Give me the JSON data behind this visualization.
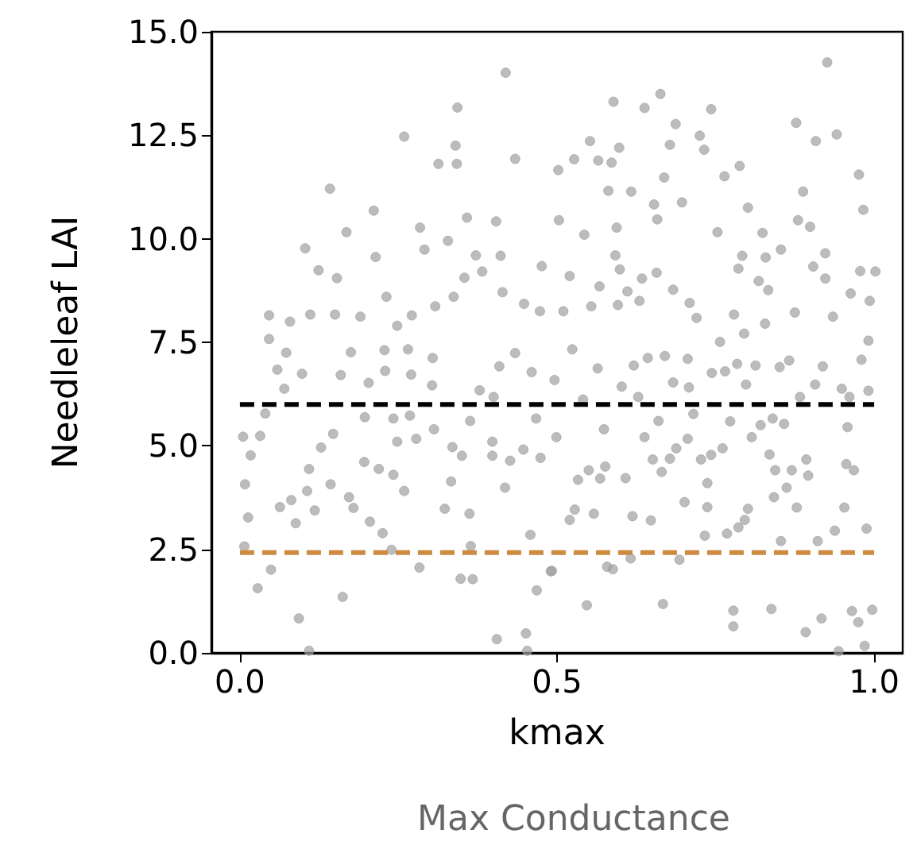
{
  "chart_data": {
    "type": "scatter",
    "xlabel": "kmax",
    "ylabel": "Needleleaf LAI",
    "annotations": [
      "Max Conductance"
    ],
    "grid": false,
    "xlim": [
      -0.045,
      1.045
    ],
    "xticks": [
      {
        "value": 0,
        "label": "0.0"
      },
      {
        "value": 0.5,
        "label": "0.5"
      },
      {
        "value": 1,
        "label": "1.0"
      }
    ],
    "ylim": [
      0,
      15
    ],
    "yticks": [
      {
        "value": 0,
        "label": "0.0"
      },
      {
        "value": 2.5,
        "label": "2.5"
      },
      {
        "value": 5,
        "label": "5.0"
      },
      {
        "value": 7.5,
        "label": "7.5"
      },
      {
        "value": 10,
        "label": "10.0"
      },
      {
        "value": 12.5,
        "label": "12.5"
      },
      {
        "value": 15,
        "label": "15.0"
      }
    ],
    "series": [
      {
        "marker": "circle",
        "color": "#a0a0a0",
        "x": [
          0.419,
          0.343,
          0.259,
          0.34,
          0.313,
          0.342,
          0.434,
          0.142,
          0.211,
          0.168,
          0.103,
          0.358,
          0.404,
          0.124,
          0.153,
          0.214,
          0.284,
          0.291,
          0.328,
          0.231,
          0.372,
          0.411,
          0.046,
          0.079,
          0.111,
          0.15,
          0.19,
          0.248,
          0.271,
          0.308,
          0.337,
          0.354,
          0.382,
          0.414,
          0.448,
          0.476,
          0.473,
          0.046,
          0.073,
          0.059,
          0.098,
          0.07,
          0.04,
          0.005,
          0.032,
          0.017,
          0.008,
          0.013,
          0.007,
          0.028,
          0.049,
          0.093,
          0.063,
          0.088,
          0.081,
          0.106,
          0.128,
          0.147,
          0.118,
          0.143,
          0.109,
          0.162,
          0.172,
          0.179,
          0.205,
          0.225,
          0.242,
          0.259,
          0.196,
          0.219,
          0.175,
          0.228,
          0.265,
          0.304,
          0.159,
          0.203,
          0.229,
          0.27,
          0.303,
          0.197,
          0.242,
          0.268,
          0.248,
          0.278,
          0.306,
          0.335,
          0.35,
          0.323,
          0.333,
          0.283,
          0.239,
          0.348,
          0.367,
          0.362,
          0.364,
          0.405,
          0.451,
          0.109,
          0.453,
          0.398,
          0.398,
          0.426,
          0.418,
          0.447,
          0.474,
          0.458,
          0.468,
          0.49,
          0.363,
          0.378,
          0.4,
          0.434,
          0.409,
          0.46,
          0.467,
          0.926,
          0.589,
          0.663,
          0.638,
          0.743,
          0.687,
          0.877,
          0.941,
          0.908,
          0.725,
          0.732,
          0.678,
          0.552,
          0.598,
          0.527,
          0.502,
          0.565,
          0.586,
          0.788,
          0.764,
          0.976,
          0.669,
          0.581,
          0.617,
          0.888,
          0.697,
          0.653,
          0.801,
          0.983,
          0.503,
          0.658,
          0.543,
          0.594,
          0.753,
          0.824,
          0.88,
          0.899,
          0.592,
          0.792,
          0.829,
          0.853,
          0.923,
          0.52,
          0.599,
          0.657,
          0.786,
          0.904,
          0.978,
          1.002,
          0.567,
          0.611,
          0.634,
          0.683,
          0.818,
          0.833,
          0.923,
          0.51,
          0.596,
          0.63,
          0.709,
          0.72,
          0.779,
          0.875,
          0.963,
          0.993,
          0.935,
          0.554,
          0.795,
          0.828,
          0.524,
          0.564,
          0.621,
          0.643,
          0.67,
          0.706,
          0.757,
          0.813,
          0.784,
          0.851,
          0.866,
          0.919,
          0.98,
          0.991,
          0.496,
          0.602,
          0.683,
          0.708,
          0.765,
          0.744,
          0.798,
          0.907,
          0.949,
          0.991,
          0.541,
          0.628,
          0.883,
          0.961,
          0.574,
          0.638,
          0.66,
          0.715,
          0.773,
          0.807,
          0.821,
          0.84,
          0.858,
          0.958,
          0.499,
          0.688,
          0.706,
          0.651,
          0.678,
          0.727,
          0.743,
          0.761,
          0.835,
          0.893,
          0.956,
          0.968,
          0.533,
          0.55,
          0.568,
          0.576,
          0.608,
          0.665,
          0.737,
          0.844,
          0.87,
          0.896,
          0.862,
          0.842,
          0.701,
          0.737,
          0.801,
          0.796,
          0.786,
          0.768,
          0.733,
          0.878,
          0.953,
          0.938,
          0.988,
          0.52,
          0.528,
          0.558,
          0.619,
          0.648,
          0.853,
          0.911,
          0.579,
          0.588,
          0.616,
          0.693,
          0.492,
          0.547,
          0.667,
          0.778,
          0.778,
          0.838,
          0.917,
          0.892,
          0.965,
          0.975,
          0.997,
          0.985,
          0.944
        ],
        "values": [
          14.01,
          13.17,
          12.47,
          12.25,
          11.81,
          11.81,
          11.93,
          11.21,
          10.68,
          10.16,
          9.77,
          10.51,
          10.42,
          9.24,
          9.05,
          9.56,
          10.27,
          9.74,
          9.95,
          8.6,
          9.6,
          9.59,
          8.15,
          8.0,
          8.17,
          8.17,
          8.12,
          7.9,
          8.15,
          8.37,
          8.6,
          9.06,
          9.21,
          8.71,
          8.43,
          9.34,
          8.25,
          7.58,
          7.25,
          6.84,
          6.74,
          6.38,
          5.78,
          5.22,
          5.24,
          4.77,
          4.07,
          3.27,
          2.57,
          1.56,
          2.01,
          0.83,
          3.52,
          3.13,
          3.69,
          3.91,
          4.96,
          5.29,
          3.44,
          4.07,
          4.44,
          1.35,
          3.76,
          3.5,
          3.17,
          2.89,
          4.3,
          3.91,
          4.61,
          4.44,
          7.26,
          7.31,
          7.33,
          7.12,
          6.71,
          6.52,
          6.81,
          6.72,
          6.46,
          5.69,
          5.66,
          5.73,
          5.1,
          5.17,
          5.4,
          4.97,
          4.76,
          3.48,
          4.14,
          2.06,
          2.49,
          1.79,
          1.78,
          3.36,
          2.58,
          0.33,
          0.47,
          0.05,
          0.05,
          5.1,
          4.76,
          4.64,
          3.99,
          4.91,
          4.71,
          2.85,
          1.51,
          1.97,
          5.6,
          6.34,
          6.18,
          7.24,
          6.92,
          6.78,
          5.66,
          14.26,
          13.31,
          13.5,
          13.16,
          13.13,
          12.77,
          12.8,
          12.52,
          12.36,
          12.49,
          12.15,
          12.27,
          12.36,
          12.2,
          11.92,
          11.66,
          11.89,
          11.84,
          11.76,
          11.51,
          11.55,
          11.48,
          11.16,
          11.14,
          11.14,
          10.88,
          10.83,
          10.75,
          10.7,
          10.45,
          10.47,
          10.1,
          10.27,
          10.16,
          10.14,
          10.45,
          10.29,
          9.6,
          9.59,
          9.55,
          9.74,
          9.65,
          9.1,
          9.26,
          9.18,
          9.28,
          9.33,
          9.22,
          9.21,
          8.85,
          8.73,
          9.04,
          8.77,
          8.98,
          8.76,
          9.04,
          8.25,
          8.4,
          8.5,
          8.45,
          8.09,
          8.17,
          8.22,
          8.68,
          8.5,
          8.12,
          8.37,
          7.71,
          7.95,
          7.33,
          6.87,
          6.94,
          7.12,
          7.17,
          7.1,
          7.51,
          6.94,
          6.98,
          6.9,
          7.06,
          6.92,
          7.08,
          7.54,
          6.59,
          6.43,
          6.53,
          6.41,
          6.8,
          6.76,
          6.48,
          6.48,
          6.38,
          6.33,
          6.12,
          6.18,
          6.18,
          6.18,
          5.4,
          5.21,
          5.6,
          5.77,
          5.59,
          5.21,
          5.5,
          5.66,
          5.53,
          5.45,
          5.21,
          4.94,
          5.17,
          4.67,
          4.69,
          4.67,
          4.78,
          4.94,
          4.79,
          4.67,
          4.56,
          4.41,
          4.18,
          4.41,
          4.21,
          4.5,
          4.22,
          4.37,
          4.1,
          4.41,
          4.41,
          4.28,
          3.99,
          3.76,
          3.64,
          3.52,
          3.48,
          3.21,
          3.03,
          2.88,
          2.83,
          3.51,
          3.51,
          2.95,
          3.0,
          3.21,
          3.46,
          3.36,
          3.3,
          3.2,
          2.7,
          2.7,
          2.08,
          2.02,
          2.28,
          2.25,
          1.98,
          1.15,
          1.18,
          1.02,
          0.64,
          1.06,
          0.83,
          0.5,
          1.01,
          0.74,
          1.04,
          0.17,
          0.04
        ]
      },
      {
        "type": "line",
        "x": [
          0,
          1
        ],
        "values": [
          6,
          6
        ],
        "color": "#000000",
        "line_style": "dashed",
        "marker": "none"
      },
      {
        "type": "line",
        "x": [
          0,
          1
        ],
        "values": [
          2.42,
          2.42
        ],
        "color": "#cd8a41",
        "line_style": "dashed",
        "marker": "none"
      }
    ]
  }
}
